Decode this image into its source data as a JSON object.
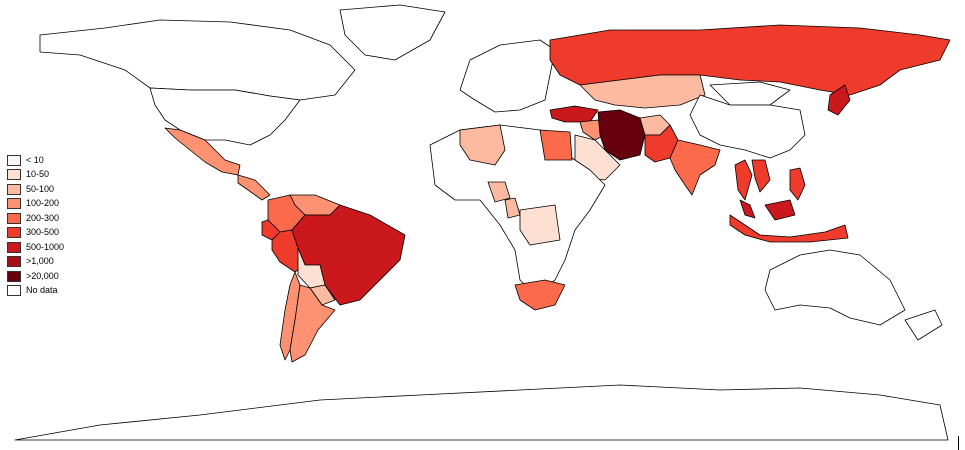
{
  "legend": {
    "items": [
      {
        "label": "< 10",
        "color": "#fff5f0"
      },
      {
        "label": "10-50",
        "color": "#fee0d2"
      },
      {
        "label": "50-100",
        "color": "#fcbba1"
      },
      {
        "label": "100-200",
        "color": "#fc9272"
      },
      {
        "label": "200-300",
        "color": "#fb6a4a"
      },
      {
        "label": "300-500",
        "color": "#ef3b2c"
      },
      {
        "label": "500-1000",
        "color": "#cb181d"
      },
      {
        "label": ">1,000",
        "color": "#a50f15"
      },
      {
        "label": ">20,000",
        "color": "#67000d"
      },
      {
        "label": "No data",
        "color": "#ffffff"
      }
    ]
  },
  "regions": [
    {
      "name": "Canada",
      "bin": "No data"
    },
    {
      "name": "United States",
      "bin": "No data"
    },
    {
      "name": "Greenland",
      "bin": "No data"
    },
    {
      "name": "Mexico",
      "bin": "100-200"
    },
    {
      "name": "Central America",
      "bin": "100-200"
    },
    {
      "name": "Colombia",
      "bin": "200-300"
    },
    {
      "name": "Venezuela",
      "bin": "100-200"
    },
    {
      "name": "Ecuador",
      "bin": "300-500"
    },
    {
      "name": "Peru",
      "bin": "300-500"
    },
    {
      "name": "Brazil",
      "bin": "500-1000"
    },
    {
      "name": "Bolivia",
      "bin": "10-50"
    },
    {
      "name": "Paraguay",
      "bin": "50-100"
    },
    {
      "name": "Chile",
      "bin": "100-200"
    },
    {
      "name": "Argentina",
      "bin": "100-200"
    },
    {
      "name": "Russia",
      "bin": "300-500"
    },
    {
      "name": "Kazakhstan",
      "bin": "50-100"
    },
    {
      "name": "Turkey",
      "bin": "500-1000"
    },
    {
      "name": "Iran",
      "bin": ">20,000"
    },
    {
      "name": "Iraq",
      "bin": "100-200"
    },
    {
      "name": "Saudi Arabia",
      "bin": "10-50"
    },
    {
      "name": "Afghanistan",
      "bin": "50-100"
    },
    {
      "name": "Pakistan",
      "bin": "300-500"
    },
    {
      "name": "India",
      "bin": "200-300"
    },
    {
      "name": "China",
      "bin": "No data"
    },
    {
      "name": "Mongolia",
      "bin": "No data"
    },
    {
      "name": "Thailand",
      "bin": "300-500"
    },
    {
      "name": "Vietnam",
      "bin": "300-500"
    },
    {
      "name": "Philippines",
      "bin": "300-500"
    },
    {
      "name": "Malaysia",
      "bin": "500-1000"
    },
    {
      "name": "Indonesia",
      "bin": "300-500"
    },
    {
      "name": "Japan",
      "bin": "500-1000"
    },
    {
      "name": "Algeria",
      "bin": "50-100"
    },
    {
      "name": "Egypt",
      "bin": "200-300"
    },
    {
      "name": "Africa (other)",
      "bin": "No data"
    },
    {
      "name": "Nigeria",
      "bin": "50-100"
    },
    {
      "name": "Cameroon",
      "bin": "50-100"
    },
    {
      "name": "DR Congo",
      "bin": "10-50"
    },
    {
      "name": "South Africa",
      "bin": "200-300"
    },
    {
      "name": "Europe",
      "bin": "No data"
    },
    {
      "name": "Australia",
      "bin": "No data"
    },
    {
      "name": "Antarctica",
      "bin": "No data"
    }
  ]
}
